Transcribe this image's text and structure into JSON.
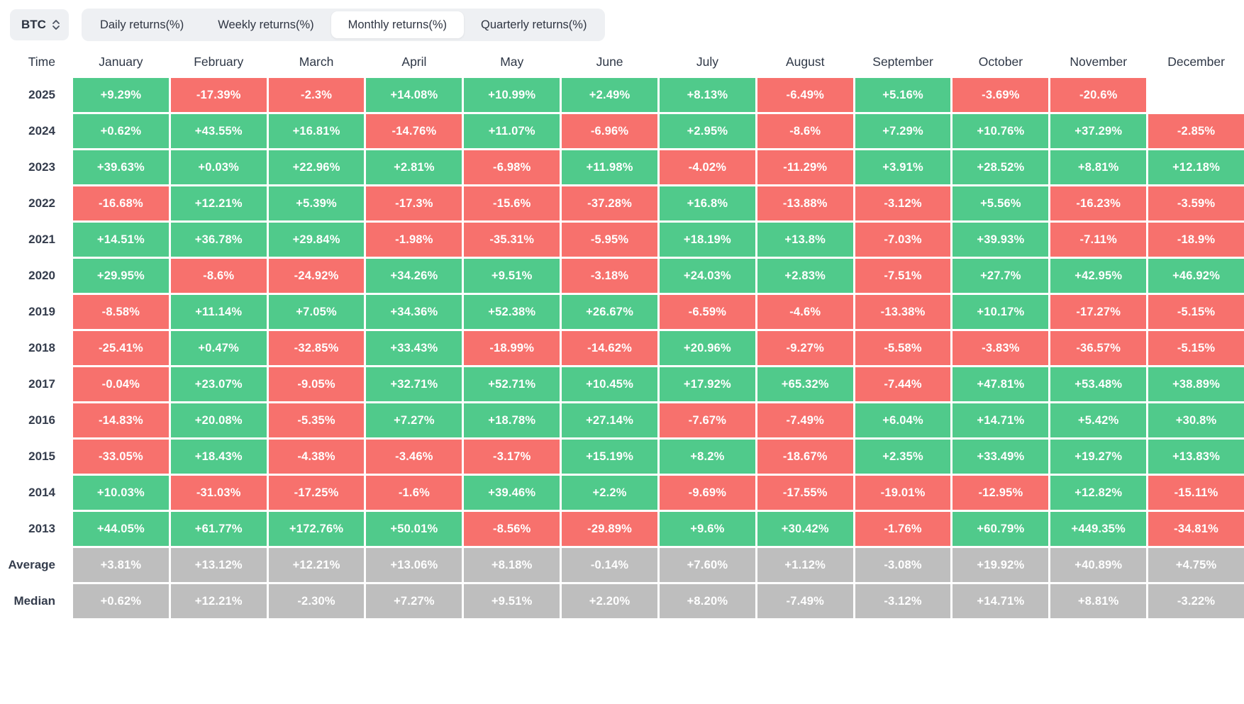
{
  "header": {
    "symbol": "BTC",
    "tabs": [
      {
        "label": "Daily returns(%)",
        "active": false
      },
      {
        "label": "Weekly returns(%)",
        "active": false
      },
      {
        "label": "Monthly returns(%)",
        "active": true
      },
      {
        "label": "Quarterly returns(%)",
        "active": false
      }
    ]
  },
  "colors": {
    "positive": "#50ca8b",
    "negative": "#f7716d",
    "summary": "#bebebe"
  },
  "table": {
    "columns": [
      "Time",
      "January",
      "February",
      "March",
      "April",
      "May",
      "June",
      "July",
      "August",
      "September",
      "October",
      "November",
      "December"
    ],
    "rows": [
      {
        "label": "2025",
        "type": "year",
        "values": [
          "+9.29%",
          "-17.39%",
          "-2.3%",
          "+14.08%",
          "+10.99%",
          "+2.49%",
          "+8.13%",
          "-6.49%",
          "+5.16%",
          "-3.69%",
          "-20.6%",
          ""
        ]
      },
      {
        "label": "2024",
        "type": "year",
        "values": [
          "+0.62%",
          "+43.55%",
          "+16.81%",
          "-14.76%",
          "+11.07%",
          "-6.96%",
          "+2.95%",
          "-8.6%",
          "+7.29%",
          "+10.76%",
          "+37.29%",
          "-2.85%"
        ]
      },
      {
        "label": "2023",
        "type": "year",
        "values": [
          "+39.63%",
          "+0.03%",
          "+22.96%",
          "+2.81%",
          "-6.98%",
          "+11.98%",
          "-4.02%",
          "-11.29%",
          "+3.91%",
          "+28.52%",
          "+8.81%",
          "+12.18%"
        ]
      },
      {
        "label": "2022",
        "type": "year",
        "values": [
          "-16.68%",
          "+12.21%",
          "+5.39%",
          "-17.3%",
          "-15.6%",
          "-37.28%",
          "+16.8%",
          "-13.88%",
          "-3.12%",
          "+5.56%",
          "-16.23%",
          "-3.59%"
        ]
      },
      {
        "label": "2021",
        "type": "year",
        "values": [
          "+14.51%",
          "+36.78%",
          "+29.84%",
          "-1.98%",
          "-35.31%",
          "-5.95%",
          "+18.19%",
          "+13.8%",
          "-7.03%",
          "+39.93%",
          "-7.11%",
          "-18.9%"
        ]
      },
      {
        "label": "2020",
        "type": "year",
        "values": [
          "+29.95%",
          "-8.6%",
          "-24.92%",
          "+34.26%",
          "+9.51%",
          "-3.18%",
          "+24.03%",
          "+2.83%",
          "-7.51%",
          "+27.7%",
          "+42.95%",
          "+46.92%"
        ]
      },
      {
        "label": "2019",
        "type": "year",
        "values": [
          "-8.58%",
          "+11.14%",
          "+7.05%",
          "+34.36%",
          "+52.38%",
          "+26.67%",
          "-6.59%",
          "-4.6%",
          "-13.38%",
          "+10.17%",
          "-17.27%",
          "-5.15%"
        ]
      },
      {
        "label": "2018",
        "type": "year",
        "values": [
          "-25.41%",
          "+0.47%",
          "-32.85%",
          "+33.43%",
          "-18.99%",
          "-14.62%",
          "+20.96%",
          "-9.27%",
          "-5.58%",
          "-3.83%",
          "-36.57%",
          "-5.15%"
        ]
      },
      {
        "label": "2017",
        "type": "year",
        "values": [
          "-0.04%",
          "+23.07%",
          "-9.05%",
          "+32.71%",
          "+52.71%",
          "+10.45%",
          "+17.92%",
          "+65.32%",
          "-7.44%",
          "+47.81%",
          "+53.48%",
          "+38.89%"
        ]
      },
      {
        "label": "2016",
        "type": "year",
        "values": [
          "-14.83%",
          "+20.08%",
          "-5.35%",
          "+7.27%",
          "+18.78%",
          "+27.14%",
          "-7.67%",
          "-7.49%",
          "+6.04%",
          "+14.71%",
          "+5.42%",
          "+30.8%"
        ]
      },
      {
        "label": "2015",
        "type": "year",
        "values": [
          "-33.05%",
          "+18.43%",
          "-4.38%",
          "-3.46%",
          "-3.17%",
          "+15.19%",
          "+8.2%",
          "-18.67%",
          "+2.35%",
          "+33.49%",
          "+19.27%",
          "+13.83%"
        ]
      },
      {
        "label": "2014",
        "type": "year",
        "values": [
          "+10.03%",
          "-31.03%",
          "-17.25%",
          "-1.6%",
          "+39.46%",
          "+2.2%",
          "-9.69%",
          "-17.55%",
          "-19.01%",
          "-12.95%",
          "+12.82%",
          "-15.11%"
        ]
      },
      {
        "label": "2013",
        "type": "year",
        "values": [
          "+44.05%",
          "+61.77%",
          "+172.76%",
          "+50.01%",
          "-8.56%",
          "-29.89%",
          "+9.6%",
          "+30.42%",
          "-1.76%",
          "+60.79%",
          "+449.35%",
          "-34.81%"
        ]
      },
      {
        "label": "Average",
        "type": "summary",
        "values": [
          "+3.81%",
          "+13.12%",
          "+12.21%",
          "+13.06%",
          "+8.18%",
          "-0.14%",
          "+7.60%",
          "+1.12%",
          "-3.08%",
          "+19.92%",
          "+40.89%",
          "+4.75%"
        ]
      },
      {
        "label": "Median",
        "type": "summary",
        "values": [
          "+0.62%",
          "+12.21%",
          "-2.30%",
          "+7.27%",
          "+9.51%",
          "+2.20%",
          "+8.20%",
          "-7.49%",
          "-3.12%",
          "+14.71%",
          "+8.81%",
          "-3.22%"
        ]
      }
    ]
  }
}
